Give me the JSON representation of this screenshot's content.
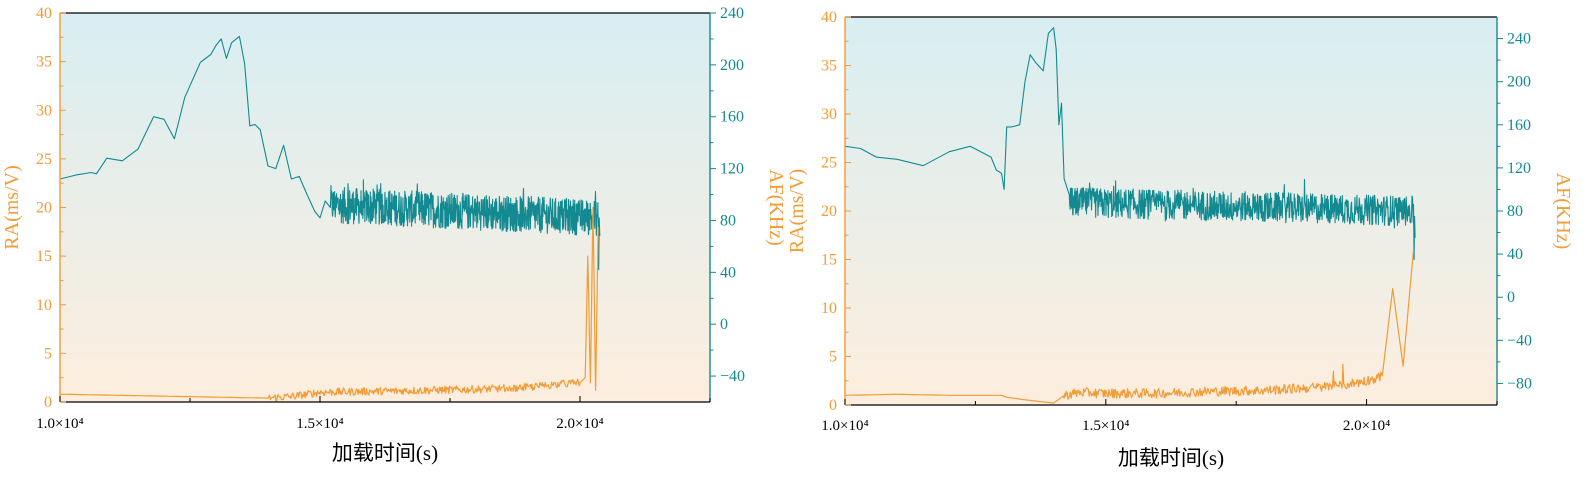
{
  "colors": {
    "ra": "#f39b36",
    "af": "#138a91",
    "bg_top": "#d8eef2",
    "bg_bottom": "#fdeede",
    "axis": "#000000"
  },
  "chart_data": [
    {
      "type": "line",
      "id": "left",
      "xlabel": "加载时间(s)",
      "ylabel_left": "RA(ms/V)",
      "ylabel_right": "AF(KHz)",
      "xlim": [
        10000,
        22500
      ],
      "ylim_left": [
        0,
        40
      ],
      "ylim_right": [
        -60,
        240
      ],
      "x_ticks": [
        10000,
        15000,
        20000
      ],
      "x_tick_labels": [
        "1.0×10⁴",
        "1.5×10⁴",
        "2.0×10⁴"
      ],
      "y_left_ticks": [
        0,
        5,
        10,
        15,
        20,
        25,
        30,
        35,
        40
      ],
      "y_left_tick_labels": [
        "0",
        "5",
        "10",
        "15",
        "20",
        "25",
        "30",
        "35",
        "40"
      ],
      "y_right_ticks": [
        -40,
        0,
        40,
        80,
        120,
        160,
        200,
        240
      ],
      "y_right_tick_labels": [
        "−40",
        "0",
        "40",
        "80",
        "120",
        "160",
        "200",
        "240"
      ],
      "grid": false,
      "series": [
        {
          "key": "AF",
          "axis": "right",
          "x": [
            10000,
            10300,
            10600,
            10700,
            10900,
            11200,
            11500,
            11800,
            12000,
            12200,
            12400,
            12700,
            12900,
            13000,
            13100,
            13200,
            13300,
            13450,
            13550,
            13650,
            13750,
            13850,
            14000,
            14150,
            14300,
            14450,
            14600,
            14750,
            14900,
            15000,
            15100,
            15200
          ],
          "y": [
            112,
            115,
            117,
            116,
            128,
            126,
            135,
            160,
            158,
            143,
            175,
            202,
            208,
            215,
            220,
            205,
            217,
            222,
            201,
            153,
            154,
            150,
            122,
            120,
            138,
            112,
            114,
            100,
            87,
            82,
            95,
            90
          ],
          "noisy_segment": {
            "x_start": 15200,
            "x_end": 20350,
            "trend_start": 92,
            "trend_end": 82,
            "amplitude": 14
          },
          "end_drop": {
            "x": 20350,
            "y_min": 42,
            "y_end": 68
          }
        },
        {
          "key": "RA",
          "axis": "left",
          "x": [
            10000,
            11000,
            12000,
            13000,
            14000,
            14500,
            15000,
            16000,
            17000,
            18000,
            19000,
            19500,
            20000,
            20100,
            20150,
            20200,
            20250,
            20300,
            20350
          ],
          "y": [
            0.8,
            0.7,
            0.6,
            0.5,
            0.4,
            0.6,
            1.0,
            1.1,
            1.2,
            1.3,
            1.5,
            1.8,
            2.0,
            2.5,
            15,
            2,
            20,
            1.2,
            18
          ],
          "noise_amplitude": 0.4
        }
      ]
    },
    {
      "type": "line",
      "id": "right",
      "xlabel": "加载时间(s)",
      "ylabel_left": "RA(ms/V)",
      "ylabel_right": "AF(KHz)",
      "xlim": [
        10000,
        22500
      ],
      "ylim_left": [
        0,
        40
      ],
      "ylim_right": [
        -100,
        260
      ],
      "x_ticks": [
        10000,
        15000,
        20000
      ],
      "x_tick_labels": [
        "1.0×10⁴",
        "1.5×10⁴",
        "2.0×10⁴"
      ],
      "y_left_ticks": [
        0,
        5,
        10,
        15,
        20,
        25,
        30,
        35,
        40
      ],
      "y_left_tick_labels": [
        "0",
        "5",
        "10",
        "15",
        "20",
        "25",
        "30",
        "35",
        "40"
      ],
      "y_right_ticks": [
        -80,
        -40,
        0,
        40,
        80,
        120,
        160,
        200,
        240
      ],
      "y_right_tick_labels": [
        "−80",
        "−40",
        "0",
        "40",
        "80",
        "120",
        "160",
        "200",
        "240"
      ],
      "grid": false,
      "series": [
        {
          "key": "AF",
          "axis": "right",
          "x": [
            10000,
            10300,
            10600,
            11000,
            11500,
            12000,
            12400,
            12800,
            12900,
            13000,
            13050,
            13100,
            13200,
            13350,
            13450,
            13550,
            13650,
            13800,
            13900,
            14000,
            14050,
            14100,
            14150,
            14200,
            14300
          ],
          "y": [
            140,
            138,
            130,
            128,
            122,
            135,
            140,
            130,
            118,
            115,
            100,
            158,
            158,
            160,
            200,
            225,
            218,
            210,
            245,
            250,
            230,
            160,
            180,
            110,
            95
          ],
          "noisy_segment": {
            "x_start": 14300,
            "x_end": 20900,
            "trend_start": 88,
            "trend_end": 80,
            "amplitude": 14
          },
          "end_drop": {
            "x": 20900,
            "y_min": 35,
            "y_end": 55
          }
        },
        {
          "key": "RA",
          "axis": "left",
          "x": [
            10000,
            11000,
            12000,
            13000,
            13100,
            13500,
            14000,
            14200,
            14500,
            15000,
            16000,
            17000,
            18000,
            19000,
            19500,
            20000,
            20300,
            20500,
            20700,
            20900
          ],
          "y": [
            1.0,
            1.1,
            1.0,
            1.0,
            0.8,
            0.5,
            0.2,
            1.0,
            1.3,
            1.2,
            1.2,
            1.4,
            1.5,
            1.8,
            2.0,
            2.5,
            3.0,
            12,
            4,
            16
          ],
          "noise_amplitude": 0.5
        }
      ]
    }
  ]
}
